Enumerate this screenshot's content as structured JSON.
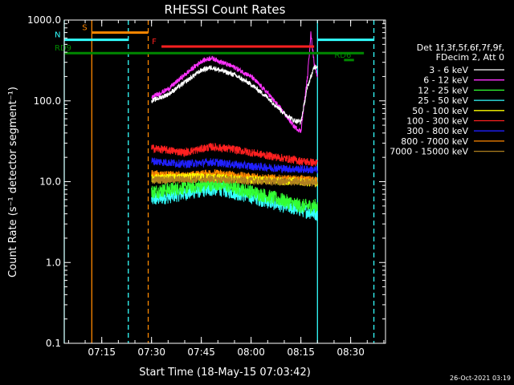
{
  "chart_data": {
    "type": "line",
    "title": "RHESSI Count Rates",
    "xlabel": "Start Time (18-May-15 07:03:42)",
    "ylabel": "Count Rate (s⁻¹ detector segment⁻¹)",
    "y_scale": "log",
    "ylim": [
      0.1,
      1000
    ],
    "xlim": [
      "07:03:42",
      "08:40:30"
    ],
    "x_ticks": [
      "07:15",
      "07:30",
      "07:45",
      "08:00",
      "08:15",
      "08:30"
    ],
    "y_ticks": [
      "0.1",
      "1.0",
      "10.0",
      "100.0",
      "1000.0"
    ],
    "legend_header": [
      "Det 1f,3f,5f,6f,7f,9f,",
      "FDecim 2, Att 0"
    ],
    "legend_position": "right",
    "footer": "26-Oct-2021 03:19",
    "series": [
      {
        "name": "3 - 6 keV",
        "color": "#ffffff",
        "x": [
          "07:30",
          "07:35",
          "07:40",
          "07:45",
          "07:48",
          "07:55",
          "08:00",
          "08:05",
          "08:10",
          "08:13",
          "08:15",
          "08:17",
          "08:19",
          "08:20"
        ],
        "y": [
          100,
          120,
          170,
          240,
          260,
          210,
          160,
          110,
          70,
          57,
          55,
          150,
          260,
          270
        ]
      },
      {
        "name": "6 - 12 keV",
        "color": "#ff33ff",
        "x": [
          "07:30",
          "07:35",
          "07:40",
          "07:45",
          "07:48",
          "07:55",
          "08:00",
          "08:05",
          "08:10",
          "08:13",
          "08:15",
          "08:17",
          "08:18",
          "08:19",
          "08:20"
        ],
        "y": [
          110,
          140,
          210,
          310,
          340,
          260,
          200,
          125,
          70,
          48,
          42,
          200,
          680,
          300,
          200
        ]
      },
      {
        "name": "12 - 25 keV",
        "color": "#33ff33",
        "x": [
          "07:30",
          "07:45",
          "07:50",
          "08:00",
          "08:10",
          "08:15",
          "08:20"
        ],
        "y": [
          7.5,
          9.0,
          9.5,
          7.5,
          5.8,
          5.0,
          5.0
        ]
      },
      {
        "name": "25 - 50 keV",
        "color": "#33ffff",
        "x": [
          "07:30",
          "07:45",
          "07:50",
          "08:00",
          "08:10",
          "08:15",
          "08:20"
        ],
        "y": [
          6.0,
          7.8,
          8.2,
          6.5,
          5.0,
          4.5,
          4.0
        ]
      },
      {
        "name": "50 - 100 keV",
        "color": "#ffff00",
        "x": [
          "07:30",
          "07:45",
          "08:00",
          "08:15",
          "08:20"
        ],
        "y": [
          11.0,
          11.5,
          10.5,
          10.0,
          9.5
        ]
      },
      {
        "name": "100 - 300 keV",
        "color": "#ff2020",
        "x": [
          "07:30",
          "07:40",
          "07:48",
          "07:55",
          "08:05",
          "08:15",
          "08:20"
        ],
        "y": [
          26,
          23,
          27,
          25,
          21,
          18,
          17
        ]
      },
      {
        "name": "300 - 800 keV",
        "color": "#2020ff",
        "x": [
          "07:30",
          "07:40",
          "07:48",
          "08:00",
          "08:10",
          "08:20"
        ],
        "y": [
          18,
          16.5,
          17.5,
          15.5,
          14.5,
          14
        ]
      },
      {
        "name": "800 - 7000 keV",
        "color": "#ff8800",
        "x": [
          "07:30",
          "07:40",
          "07:48",
          "08:00",
          "08:10",
          "08:20"
        ],
        "y": [
          12.5,
          11.8,
          12.8,
          11.5,
          10.8,
          10.5
        ]
      },
      {
        "name": "7000 - 15000 keV",
        "color": "#b08020",
        "x": [
          "07:30",
          "07:48",
          "08:00",
          "08:20"
        ],
        "y": [
          10.5,
          10.8,
          10.2,
          9.8
        ]
      }
    ],
    "annotations": [
      {
        "label": "S",
        "color": "#ff8800",
        "x_start": "07:12",
        "x_end": "07:29",
        "y": 700
      },
      {
        "label": "N",
        "color": "#33ffff",
        "x_start": "07:03:42",
        "x_end": "07:23",
        "y": 570
      },
      {
        "label": "F",
        "color": "#ff2020",
        "x_start": "07:33",
        "x_end": "08:19",
        "y": 470
      },
      {
        "label": "RD9",
        "color": "#008800",
        "x_start": "07:03:42",
        "x_end": "08:34",
        "y": 390
      },
      {
        "label": "RD6",
        "color": "#008800",
        "x_start": "08:28",
        "x_end": "08:31",
        "y": 320
      },
      {
        "label": "",
        "color": "#33ffff",
        "x_start": "08:20",
        "x_end": "08:37",
        "y": 570
      }
    ],
    "vertical_markers": [
      {
        "x": "07:03:42",
        "color": "#33ffff",
        "style": "solid"
      },
      {
        "x": "07:12",
        "color": "#ff8800",
        "style": "solid"
      },
      {
        "x": "07:23",
        "color": "#33ffff",
        "style": "dashed"
      },
      {
        "x": "07:29",
        "color": "#ff8800",
        "style": "dashed"
      },
      {
        "x": "08:20",
        "color": "#33ffff",
        "style": "solid"
      },
      {
        "x": "08:37",
        "color": "#33ffff",
        "style": "dashed"
      }
    ]
  }
}
